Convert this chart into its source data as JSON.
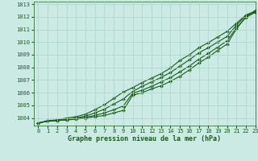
{
  "xlabel": "Graphe pression niveau de la mer (hPa)",
  "xlim": [
    -0.5,
    23
  ],
  "ylim": [
    1003.4,
    1013.2
  ],
  "yticks": [
    1004,
    1005,
    1006,
    1007,
    1008,
    1009,
    1010,
    1011,
    1012,
    1013
  ],
  "xticks": [
    0,
    1,
    2,
    3,
    4,
    5,
    6,
    7,
    8,
    9,
    10,
    11,
    12,
    13,
    14,
    15,
    16,
    17,
    18,
    19,
    20,
    21,
    22,
    23
  ],
  "bg_color": "#cceae4",
  "grid_color": "#aad4ca",
  "line_color": "#1a5c1a",
  "series": [
    [
      1003.6,
      1003.75,
      1003.8,
      1003.85,
      1003.9,
      1004.0,
      1004.1,
      1004.2,
      1004.4,
      1004.6,
      1005.8,
      1006.0,
      1006.3,
      1006.55,
      1006.9,
      1007.3,
      1007.8,
      1008.35,
      1008.8,
      1009.35,
      1009.85,
      1011.05,
      1012.0,
      1012.5
    ],
    [
      1003.6,
      1003.75,
      1003.8,
      1003.85,
      1003.95,
      1004.05,
      1004.2,
      1004.4,
      1004.65,
      1004.95,
      1005.95,
      1006.2,
      1006.5,
      1006.85,
      1007.2,
      1007.65,
      1008.1,
      1008.65,
      1009.1,
      1009.6,
      1010.1,
      1011.15,
      1011.95,
      1012.35
    ],
    [
      1003.6,
      1003.75,
      1003.8,
      1003.9,
      1004.0,
      1004.15,
      1004.4,
      1004.7,
      1005.1,
      1005.5,
      1006.1,
      1006.5,
      1006.85,
      1007.2,
      1007.6,
      1008.1,
      1008.6,
      1009.15,
      1009.55,
      1010.0,
      1010.45,
      1011.35,
      1012.1,
      1012.4
    ],
    [
      1003.6,
      1003.8,
      1003.85,
      1004.0,
      1004.1,
      1004.3,
      1004.65,
      1005.05,
      1005.55,
      1006.05,
      1006.4,
      1006.8,
      1007.15,
      1007.5,
      1007.95,
      1008.55,
      1009.0,
      1009.55,
      1009.95,
      1010.4,
      1010.85,
      1011.5,
      1012.15,
      1012.45
    ]
  ],
  "marker": "D",
  "markersize": 2.0,
  "linewidth": 0.8,
  "tick_fontsize": 5.0,
  "label_fontsize": 6.0,
  "label_fontweight": "bold"
}
